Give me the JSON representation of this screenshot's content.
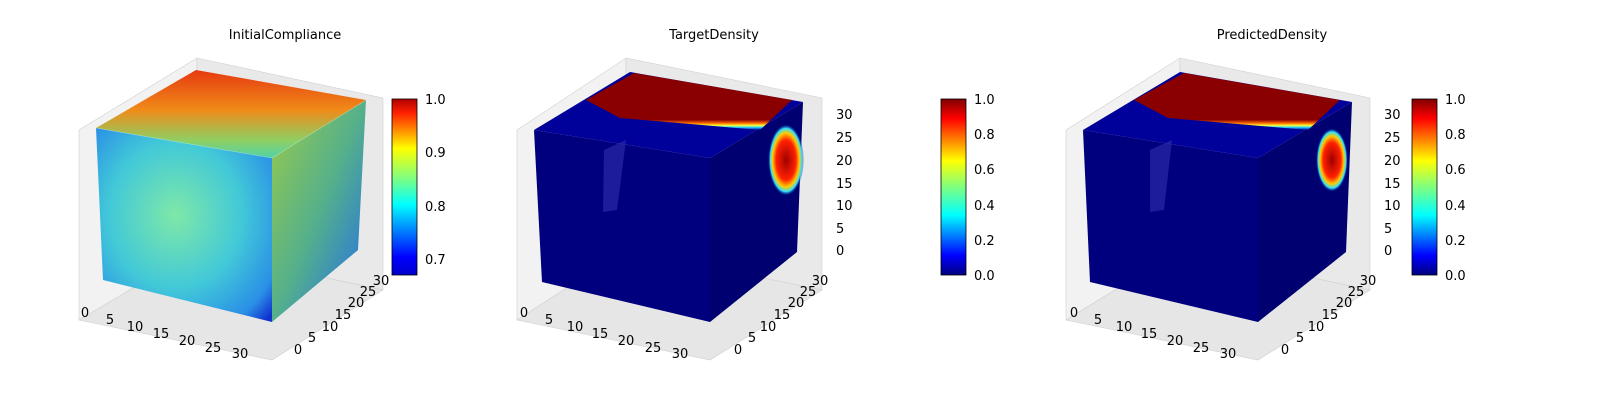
{
  "figure": {
    "panels": [
      "InitialCompliance",
      "TargetDensity",
      "PredictedDensity"
    ]
  },
  "chart_data": [
    {
      "type": "heatmap",
      "subtype": "3d-voxel-cube",
      "title": "InitialCompliance",
      "colormap": "jet",
      "axes": {
        "x_ticks": [
          "0",
          "5",
          "10",
          "15",
          "20",
          "25",
          "30"
        ],
        "y_ticks": [
          "0",
          "5",
          "10",
          "15",
          "20",
          "25",
          "30"
        ],
        "z_ticks": [],
        "xlim": [
          0,
          32
        ],
        "ylim": [
          0,
          32
        ],
        "zlim": [
          0,
          32
        ]
      },
      "colorbar": {
        "range": [
          0.67,
          1.0
        ],
        "ticks": [
          "0.7",
          "0.8",
          "0.9",
          "1.0"
        ]
      },
      "faces": {
        "top": "high values (red/orange) along back region, green toward front",
        "front": "mostly cyan/light-blue, blue at bottom-left corner",
        "side": "green-yellow gradient fading to blue at lower right"
      }
    },
    {
      "type": "heatmap",
      "subtype": "3d-voxel-cube",
      "title": "TargetDensity",
      "colormap": "jet",
      "axes": {
        "x_ticks": [
          "0",
          "5",
          "10",
          "15",
          "20",
          "25",
          "30"
        ],
        "y_ticks": [
          "0",
          "5",
          "10",
          "15",
          "20",
          "25",
          "30"
        ],
        "z_ticks": [
          "0",
          "5",
          "10",
          "15",
          "20",
          "25",
          "30"
        ],
        "xlim": [
          0,
          32
        ],
        "ylim": [
          0,
          32
        ],
        "zlim": [
          0,
          32
        ]
      },
      "colorbar": {
        "range": [
          0.0,
          1.0
        ],
        "ticks": [
          "0.0",
          "0.2",
          "0.4",
          "0.6",
          "0.8",
          "1.0"
        ]
      },
      "faces": {
        "top": "solid material (dark red) over most of top surface",
        "front": "void (dark blue)",
        "side": "material patch (red) in upper right"
      }
    },
    {
      "type": "heatmap",
      "subtype": "3d-voxel-cube",
      "title": "PredictedDensity",
      "colormap": "jet",
      "axes": {
        "x_ticks": [
          "0",
          "5",
          "10",
          "15",
          "20",
          "25",
          "30"
        ],
        "y_ticks": [
          "0",
          "5",
          "10",
          "15",
          "20",
          "25",
          "30"
        ],
        "z_ticks": [
          "0",
          "5",
          "10",
          "15",
          "20",
          "25",
          "30"
        ],
        "xlim": [
          0,
          32
        ],
        "ylim": [
          0,
          32
        ],
        "zlim": [
          0,
          32
        ]
      },
      "colorbar": {
        "range": [
          0.0,
          1.0
        ],
        "ticks": [
          "0.0",
          "0.2",
          "0.4",
          "0.6",
          "0.8",
          "1.0"
        ]
      },
      "faces": {
        "top": "solid material (dark red) over most of top surface",
        "front": "void (dark blue)",
        "side": "material patch (red) in upper right"
      }
    }
  ],
  "colors": {
    "jet_stops": [
      "#00007f",
      "#0000ff",
      "#007fff",
      "#00ffff",
      "#7fff7f",
      "#ffff00",
      "#ff7f00",
      "#ff0000",
      "#7f0000"
    ],
    "pane_fill": "#f2f2f2",
    "grid": "#dcdcdc"
  }
}
